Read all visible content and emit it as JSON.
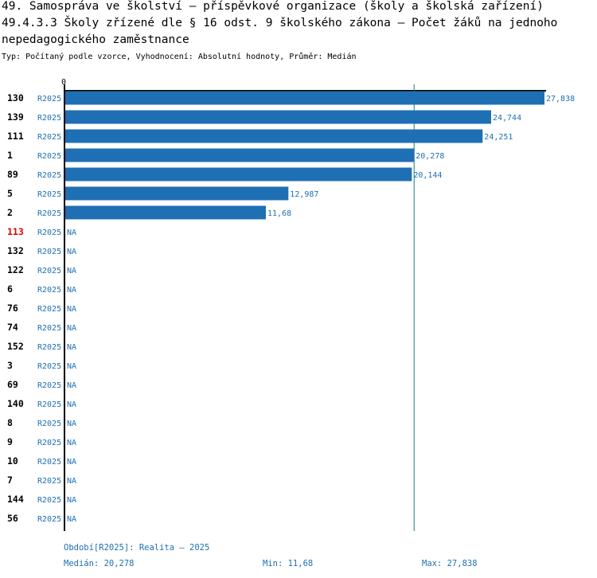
{
  "header": {
    "title_line1": "49. Samospráva ve školství – příspěvkové organizace (školy a školská zařízení)",
    "title_line2": "49.4.3.3 Školy zřízené dle § 16 odst. 9 školského zákona – Počet žáků na jednoho",
    "title_line3": "nepedagogického zaměstnance",
    "subtitle": "Typ: Počítaný podle vzorce, Vyhodnocení: Absolutní hodnoty, Průměr: Medián"
  },
  "chart_data": {
    "type": "bar",
    "orientation": "horizontal",
    "axis_zero_label": "0",
    "xlim": [
      0,
      27838
    ],
    "reference_line": {
      "name": "Medián",
      "value": 20278
    },
    "series_tag": "R2025",
    "rows": [
      {
        "id": "130",
        "value": 27838,
        "label": "27,838",
        "highlight": false
      },
      {
        "id": "139",
        "value": 24744,
        "label": "24,744",
        "highlight": false
      },
      {
        "id": "111",
        "value": 24251,
        "label": "24,251",
        "highlight": false
      },
      {
        "id": "1",
        "value": 20278,
        "label": "20,278",
        "highlight": false
      },
      {
        "id": "89",
        "value": 20144,
        "label": "20,144",
        "highlight": false
      },
      {
        "id": "5",
        "value": 12987,
        "label": "12,987",
        "highlight": false
      },
      {
        "id": "2",
        "value": 11680,
        "label": "11,68",
        "highlight": false
      },
      {
        "id": "113",
        "value": null,
        "label": "NA",
        "highlight": true
      },
      {
        "id": "132",
        "value": null,
        "label": "NA",
        "highlight": false
      },
      {
        "id": "122",
        "value": null,
        "label": "NA",
        "highlight": false
      },
      {
        "id": "6",
        "value": null,
        "label": "NA",
        "highlight": false
      },
      {
        "id": "76",
        "value": null,
        "label": "NA",
        "highlight": false
      },
      {
        "id": "74",
        "value": null,
        "label": "NA",
        "highlight": false
      },
      {
        "id": "152",
        "value": null,
        "label": "NA",
        "highlight": false
      },
      {
        "id": "3",
        "value": null,
        "label": "NA",
        "highlight": false
      },
      {
        "id": "69",
        "value": null,
        "label": "NA",
        "highlight": false
      },
      {
        "id": "140",
        "value": null,
        "label": "NA",
        "highlight": false
      },
      {
        "id": "8",
        "value": null,
        "label": "NA",
        "highlight": false
      },
      {
        "id": "9",
        "value": null,
        "label": "NA",
        "highlight": false
      },
      {
        "id": "10",
        "value": null,
        "label": "NA",
        "highlight": false
      },
      {
        "id": "7",
        "value": null,
        "label": "NA",
        "highlight": false
      },
      {
        "id": "144",
        "value": null,
        "label": "NA",
        "highlight": false
      },
      {
        "id": "56",
        "value": null,
        "label": "NA",
        "highlight": false
      }
    ],
    "colors": {
      "bar": "#1f6fb4",
      "label": "#1f6fb4",
      "reference_line": "#1f7a7a",
      "axis": "#000000",
      "highlight_id": "#dd0000",
      "id": "#000000"
    }
  },
  "footer": {
    "period": "Období[R2025]: Realita – 2025",
    "median": "Medián: 20,278",
    "min": "Min: 11,68",
    "max": "Max: 27,838"
  }
}
